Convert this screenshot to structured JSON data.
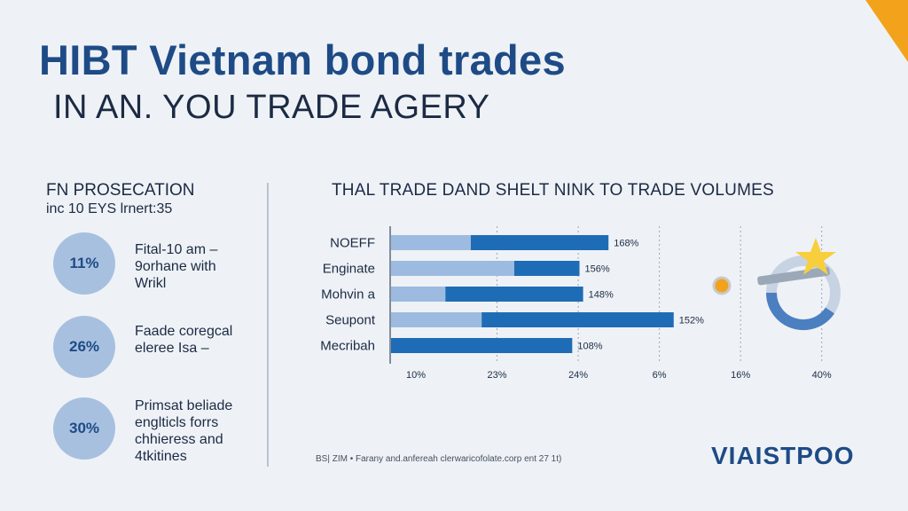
{
  "header": {
    "title": "HIBT Vietnam bond trades",
    "subtitle": "IN AN. YOU TRADE AGERY"
  },
  "left_panel": {
    "heading": "FN PROSECATION",
    "subheading": "inc 10 EYS lrnert:35",
    "stats": [
      {
        "value": "11%",
        "lines": [
          "Fital-10 am –",
          "9orhane with",
          "Wrikl"
        ]
      },
      {
        "value": "26%",
        "lines": [
          "Faade coregcal",
          "eleree Isa –"
        ]
      },
      {
        "value": "30%",
        "lines": [
          "Primsat beliade",
          "englticls forrs",
          "chhieress and",
          "4tkitines"
        ]
      }
    ]
  },
  "chart_data": {
    "type": "bar",
    "orientation": "horizontal",
    "title": "THAL TRADE DAND SHELT NINK TO TRADE VOLUMES",
    "categories": [
      "NOEFF",
      "Enginate",
      "Mohvin a",
      "Seupont",
      "Mecribah"
    ],
    "series": [
      {
        "values": [
          22,
          34,
          15,
          25,
          0
        ],
        "color": "#9dbbe0"
      },
      {
        "values": [
          38,
          18,
          38,
          53,
          50
        ],
        "color": "#1f6cb6"
      }
    ],
    "data_labels": [
      "168%",
      "156%",
      "148%",
      "152%",
      "108%"
    ],
    "x_tick_labels": [
      "10%",
      "23%",
      "24%",
      "6%",
      "16%",
      "40%"
    ],
    "xlim": [
      0,
      115
    ],
    "grid": "vertical dashed"
  },
  "footnote": "BS| ZIM • Farany and.anfereah clerwaricofolate.corp ent 27 1t)",
  "brand": {
    "logo_text": "VIAISTPOO",
    "accent_color": "#f3a21b",
    "primary_color": "#1e4b86"
  }
}
